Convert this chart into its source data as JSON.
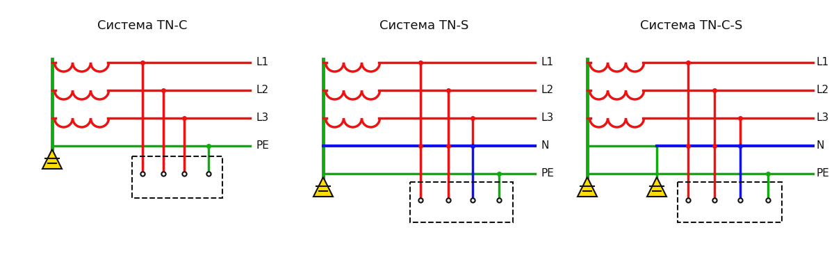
{
  "title_tnc": "Система TN-C",
  "title_tns": "Система TN-S",
  "title_tncs": "Система TN-C-S",
  "red": "#ee1111",
  "green": "#11aa11",
  "blue": "#1111ee",
  "black": "#111111",
  "bg": "#ffffff",
  "lw": 2.5,
  "label_fontsize": 11,
  "title_fontsize": 13
}
